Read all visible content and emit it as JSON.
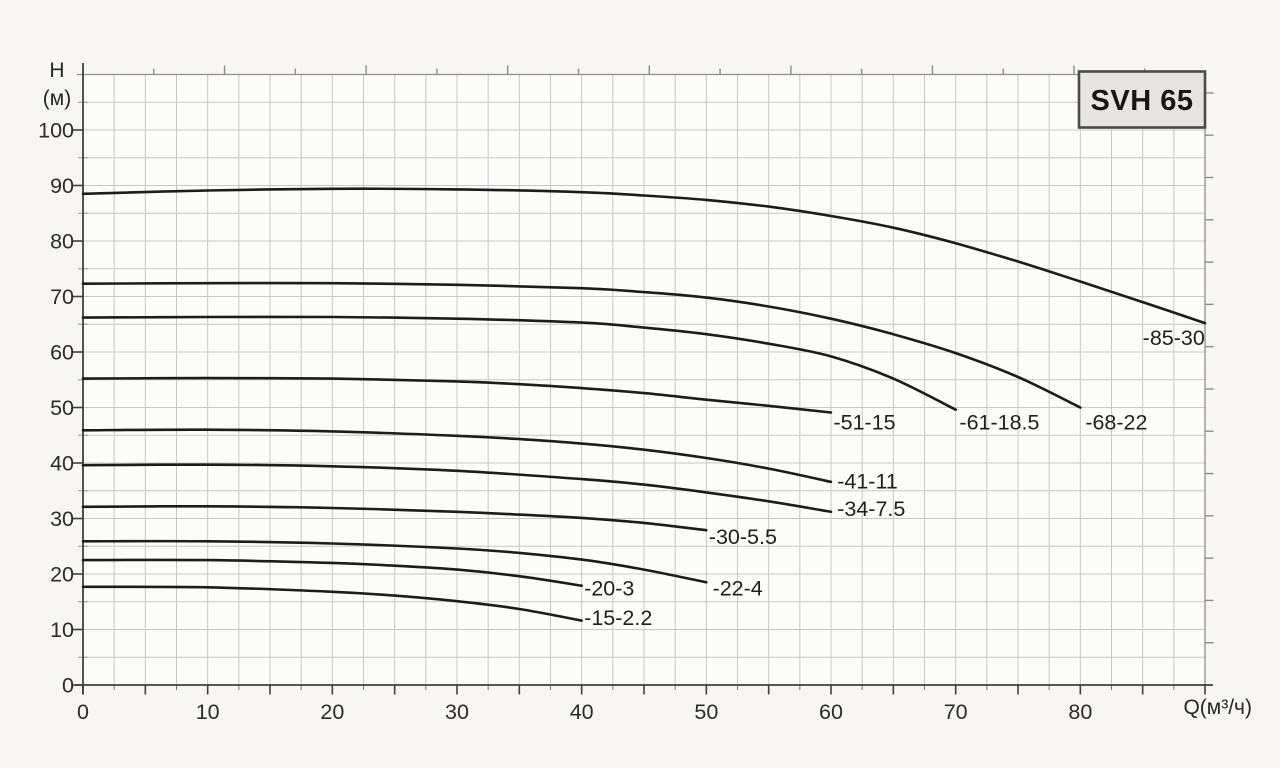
{
  "title_box": {
    "label": "SVH 65",
    "fill": "#e6e5e2",
    "border": "#4a4a4a"
  },
  "chart_data": {
    "type": "line",
    "title": "SVH 65",
    "xlabel": "Q(м³/ч)",
    "ylabel_line1": "H",
    "ylabel_line2": "(м)",
    "xlim": [
      0,
      90
    ],
    "ylim": [
      0,
      110
    ],
    "x_tick_labels": [
      0,
      10,
      20,
      30,
      40,
      50,
      60,
      70,
      80
    ],
    "y_tick_labels": [
      0,
      10,
      20,
      30,
      40,
      50,
      60,
      70,
      80,
      90,
      100
    ],
    "x_grid_step": 2.5,
    "y_grid_step": 5,
    "x_major_tick_step": 5,
    "y_major_tick_step": 10,
    "top_secondary_tick_step": 5.678,
    "right_secondary_tick_step": 7.62,
    "grid": true,
    "legend_position": "curve-end-labels",
    "colors": {
      "curve": "#1c1c1c",
      "grid": "#c7c7c7",
      "axis": "#3f3f3f",
      "frame": "#8d8d8d",
      "text": "#2b2b2b",
      "plot_fill": "#fcfcfb"
    },
    "series": [
      {
        "name": "-85-30",
        "label_pos": [
          85.0,
          62.6
        ],
        "points": [
          [
            0,
            88.5
          ],
          [
            10,
            89.1
          ],
          [
            20,
            89.4
          ],
          [
            30,
            89.3
          ],
          [
            40,
            88.8
          ],
          [
            45,
            88.2
          ],
          [
            50,
            87.4
          ],
          [
            55,
            86.2
          ],
          [
            60,
            84.5
          ],
          [
            65,
            82.4
          ],
          [
            70,
            79.6
          ],
          [
            75,
            76.3
          ],
          [
            80,
            72.7
          ],
          [
            85,
            69.0
          ],
          [
            90,
            65.2
          ]
        ]
      },
      {
        "name": "-68-22",
        "label_pos": [
          80.4,
          47.4
        ],
        "points": [
          [
            0,
            72.3
          ],
          [
            10,
            72.4
          ],
          [
            20,
            72.4
          ],
          [
            30,
            72.1
          ],
          [
            40,
            71.5
          ],
          [
            45,
            70.8
          ],
          [
            50,
            69.8
          ],
          [
            55,
            68.2
          ],
          [
            60,
            66.0
          ],
          [
            65,
            63.2
          ],
          [
            70,
            59.8
          ],
          [
            75,
            55.5
          ],
          [
            80,
            50.0
          ]
        ]
      },
      {
        "name": "-61-18.5",
        "label_pos": [
          70.3,
          47.4
        ],
        "points": [
          [
            0,
            66.2
          ],
          [
            10,
            66.3
          ],
          [
            20,
            66.3
          ],
          [
            30,
            66.0
          ],
          [
            40,
            65.3
          ],
          [
            45,
            64.4
          ],
          [
            50,
            63.2
          ],
          [
            55,
            61.5
          ],
          [
            60,
            59.2
          ],
          [
            65,
            55.2
          ],
          [
            70,
            49.6
          ]
        ]
      },
      {
        "name": "-51-15",
        "label_pos": [
          60.2,
          47.4
        ],
        "points": [
          [
            0,
            55.2
          ],
          [
            10,
            55.3
          ],
          [
            20,
            55.2
          ],
          [
            30,
            54.7
          ],
          [
            35,
            54.2
          ],
          [
            40,
            53.5
          ],
          [
            45,
            52.6
          ],
          [
            50,
            51.4
          ],
          [
            55,
            50.3
          ],
          [
            60,
            49.1
          ]
        ]
      },
      {
        "name": "-41-11",
        "label_pos": [
          60.5,
          36.8
        ],
        "points": [
          [
            0,
            45.9
          ],
          [
            10,
            46.0
          ],
          [
            20,
            45.7
          ],
          [
            30,
            44.9
          ],
          [
            35,
            44.3
          ],
          [
            40,
            43.5
          ],
          [
            45,
            42.4
          ],
          [
            50,
            40.9
          ],
          [
            55,
            39.0
          ],
          [
            60,
            36.6
          ]
        ]
      },
      {
        "name": "-34-7.5",
        "label_pos": [
          60.5,
          31.8
        ],
        "points": [
          [
            0,
            39.6
          ],
          [
            10,
            39.7
          ],
          [
            20,
            39.4
          ],
          [
            30,
            38.6
          ],
          [
            40,
            37.1
          ],
          [
            45,
            36.1
          ],
          [
            50,
            34.7
          ],
          [
            55,
            33.1
          ],
          [
            60,
            31.2
          ]
        ]
      },
      {
        "name": "-30-5.5",
        "label_pos": [
          50.2,
          26.8
        ],
        "points": [
          [
            0,
            32.1
          ],
          [
            10,
            32.2
          ],
          [
            20,
            31.9
          ],
          [
            30,
            31.2
          ],
          [
            35,
            30.7
          ],
          [
            40,
            30.1
          ],
          [
            45,
            29.2
          ],
          [
            50,
            27.9
          ]
        ]
      },
      {
        "name": "-22-4",
        "label_pos": [
          50.5,
          17.5
        ],
        "points": [
          [
            0,
            25.9
          ],
          [
            10,
            25.9
          ],
          [
            20,
            25.5
          ],
          [
            30,
            24.6
          ],
          [
            35,
            23.8
          ],
          [
            40,
            22.6
          ],
          [
            45,
            20.8
          ],
          [
            50,
            18.5
          ]
        ]
      },
      {
        "name": "-20-3",
        "label_pos": [
          40.2,
          17.5
        ],
        "points": [
          [
            0,
            22.5
          ],
          [
            10,
            22.5
          ],
          [
            20,
            22.0
          ],
          [
            25,
            21.5
          ],
          [
            30,
            20.8
          ],
          [
            35,
            19.6
          ],
          [
            40,
            17.9
          ]
        ]
      },
      {
        "name": "-15-2.2",
        "label_pos": [
          40.2,
          12.2
        ],
        "points": [
          [
            0,
            17.7
          ],
          [
            10,
            17.6
          ],
          [
            20,
            16.8
          ],
          [
            25,
            16.1
          ],
          [
            30,
            15.1
          ],
          [
            35,
            13.7
          ],
          [
            40,
            11.6
          ]
        ]
      }
    ]
  }
}
